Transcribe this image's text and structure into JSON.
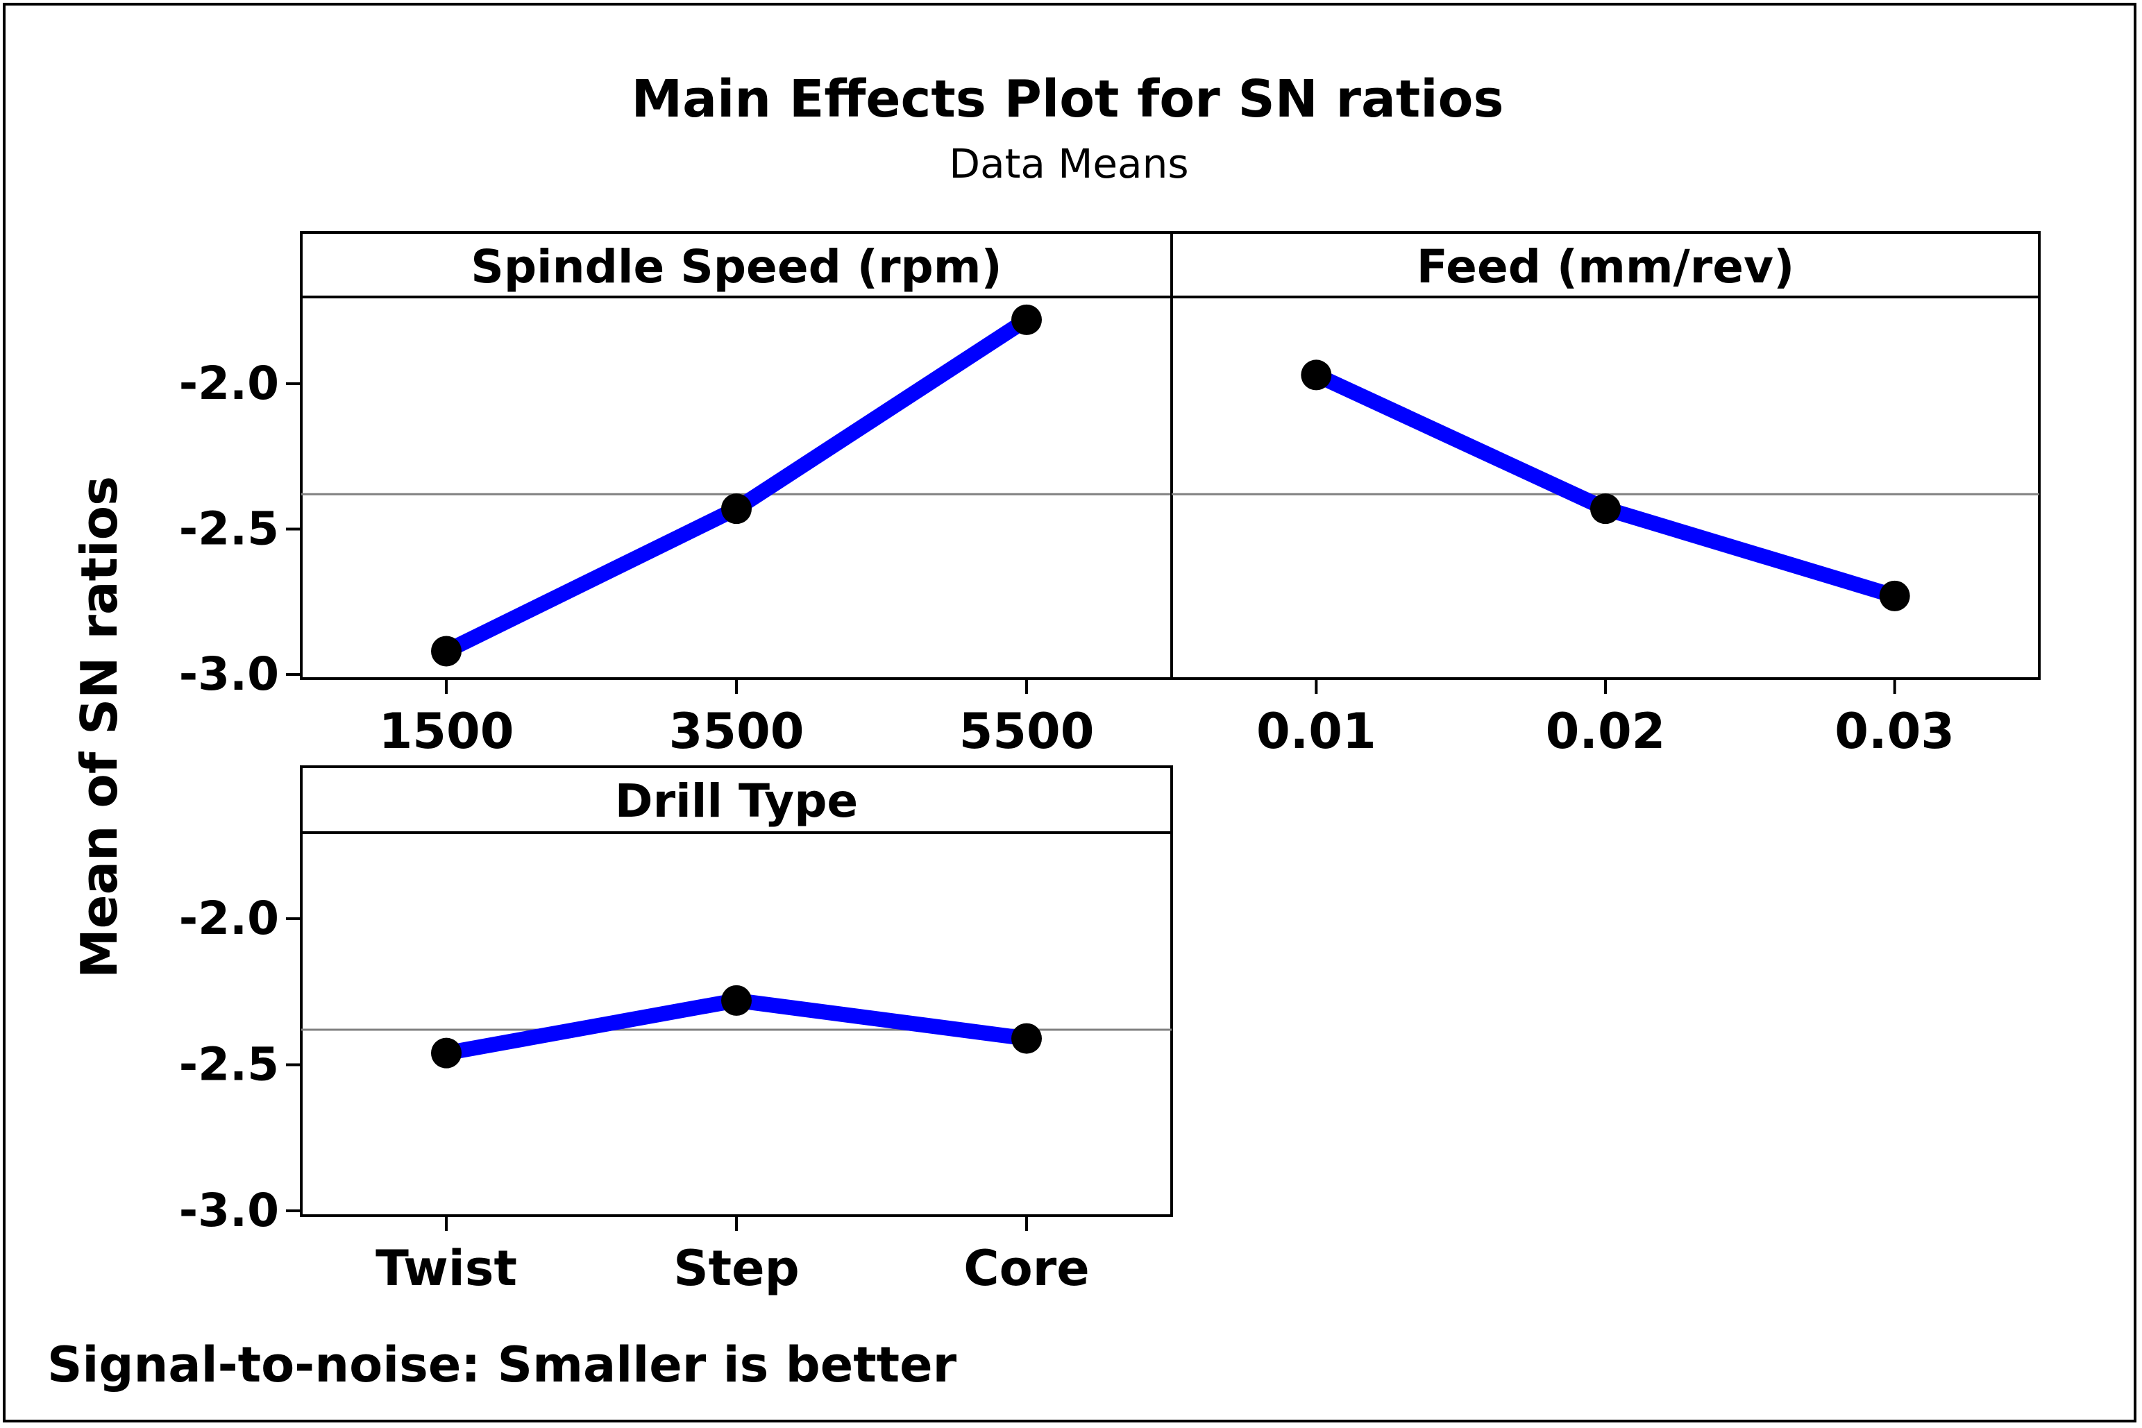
{
  "chart_data": {
    "type": "line",
    "title": "Main Effects Plot for SN ratios",
    "subtitle": "Data Means",
    "ylabel": "Mean of SN ratios",
    "footnote": "Signal-to-noise: Smaller is better",
    "ylim": [
      -3.0,
      -1.7
    ],
    "yticks": [
      "-2.0",
      "-2.5",
      "-3.0"
    ],
    "ytick_values": [
      -2.0,
      -2.5,
      -3.0
    ],
    "reference_mean": -2.38,
    "line_color": "#0000ff",
    "marker_color": "#000000",
    "reference_line_color": "#808080",
    "panels": [
      {
        "title": "Spindle Speed (rpm)",
        "categories": [
          "1500",
          "3500",
          "5500"
        ],
        "values": [
          -2.92,
          -2.43,
          -1.78
        ]
      },
      {
        "title": "Feed (mm/rev)",
        "categories": [
          "0.01",
          "0.02",
          "0.03"
        ],
        "values": [
          -1.97,
          -2.43,
          -2.73
        ]
      },
      {
        "title": "Drill Type",
        "categories": [
          "Twist",
          "Step",
          "Core"
        ],
        "values": [
          -2.46,
          -2.28,
          -2.41
        ]
      }
    ]
  }
}
